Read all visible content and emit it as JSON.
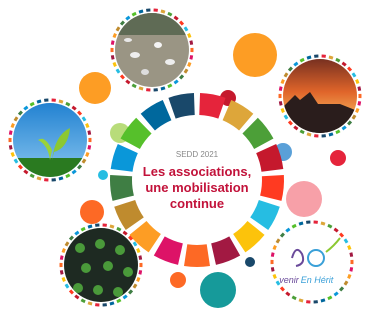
{
  "center": {
    "kicker": "SEDD 2021",
    "title_lines": [
      "Les associations,",
      "une mobilisation",
      "continue"
    ]
  },
  "logo": {
    "left": "venir",
    "right": "En Hérit"
  }
}
